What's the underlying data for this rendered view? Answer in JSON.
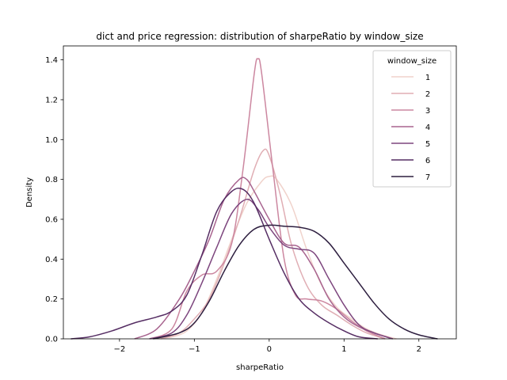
{
  "chart_data": {
    "type": "line",
    "title": "dict and price regression: distribution of sharpeRatio by window_size",
    "xlabel": "sharpeRatio",
    "ylabel": "Density",
    "xlim": [
      -2.75,
      2.5
    ],
    "ylim": [
      0,
      1.47
    ],
    "xticks": [
      -2,
      -1,
      0,
      1,
      2
    ],
    "yticks": [
      0.0,
      0.2,
      0.4,
      0.6,
      0.8,
      1.0,
      1.2,
      1.4
    ],
    "xtick_labels": [
      "−2",
      "−1",
      "0",
      "1",
      "2"
    ],
    "ytick_labels": [
      "0.0",
      "0.2",
      "0.4",
      "0.6",
      "0.8",
      "1.0",
      "1.2",
      "1.4"
    ],
    "grid": false,
    "legend": {
      "title": "window_size",
      "placement": "top-right"
    },
    "series": [
      {
        "name": "1",
        "color": "#f0d2cb",
        "x": [
          -1.55,
          -1.3,
          -1.1,
          -0.9,
          -0.7,
          -0.5,
          -0.3,
          -0.1,
          0.0,
          0.1,
          0.3,
          0.5,
          0.7,
          0.9,
          1.1,
          1.3,
          1.5,
          1.7
        ],
        "y": [
          0.0,
          0.01,
          0.04,
          0.13,
          0.3,
          0.5,
          0.68,
          0.79,
          0.815,
          0.8,
          0.67,
          0.45,
          0.27,
          0.16,
          0.1,
          0.05,
          0.02,
          0.0
        ]
      },
      {
        "name": "2",
        "color": "#e0aeb4",
        "x": [
          -1.45,
          -1.2,
          -1.0,
          -0.8,
          -0.6,
          -0.4,
          -0.2,
          -0.08,
          0.0,
          0.15,
          0.3,
          0.5,
          0.7,
          0.9,
          1.1,
          1.3,
          1.55
        ],
        "y": [
          0.0,
          0.03,
          0.1,
          0.2,
          0.38,
          0.6,
          0.85,
          0.945,
          0.92,
          0.72,
          0.47,
          0.27,
          0.17,
          0.12,
          0.07,
          0.03,
          0.0
        ]
      },
      {
        "name": "3",
        "color": "#cc87a0",
        "x": [
          -1.6,
          -1.3,
          -1.1,
          -0.9,
          -0.7,
          -0.5,
          -0.35,
          -0.2,
          -0.15,
          -0.1,
          0.05,
          0.2,
          0.35,
          0.5,
          0.7,
          0.9,
          1.1,
          1.3,
          1.55
        ],
        "y": [
          0.0,
          0.05,
          0.24,
          0.32,
          0.34,
          0.48,
          0.85,
          1.33,
          1.405,
          1.33,
          0.85,
          0.4,
          0.22,
          0.2,
          0.19,
          0.15,
          0.09,
          0.04,
          0.0
        ]
      },
      {
        "name": "4",
        "color": "#a8648f",
        "x": [
          -1.8,
          -1.5,
          -1.2,
          -1.0,
          -0.8,
          -0.6,
          -0.4,
          -0.3,
          -0.2,
          0.0,
          0.2,
          0.4,
          0.6,
          0.8,
          1.0,
          1.2,
          1.4,
          1.65
        ],
        "y": [
          0.0,
          0.05,
          0.2,
          0.34,
          0.5,
          0.7,
          0.8,
          0.8,
          0.74,
          0.6,
          0.48,
          0.46,
          0.35,
          0.2,
          0.11,
          0.06,
          0.03,
          0.0
        ]
      },
      {
        "name": "5",
        "color": "#7d467e",
        "x": [
          -1.6,
          -1.3,
          -1.1,
          -0.9,
          -0.7,
          -0.5,
          -0.3,
          -0.15,
          0.0,
          0.2,
          0.4,
          0.6,
          0.8,
          1.0,
          1.2,
          1.4,
          1.65
        ],
        "y": [
          0.0,
          0.03,
          0.12,
          0.28,
          0.46,
          0.63,
          0.7,
          0.65,
          0.56,
          0.47,
          0.45,
          0.43,
          0.3,
          0.17,
          0.07,
          0.03,
          0.0
        ]
      },
      {
        "name": "6",
        "color": "#552d63",
        "x": [
          -2.65,
          -2.4,
          -2.1,
          -1.8,
          -1.5,
          -1.3,
          -1.1,
          -0.9,
          -0.7,
          -0.5,
          -0.35,
          -0.2,
          0.0,
          0.2,
          0.4,
          0.6,
          0.8,
          1.0,
          1.2,
          1.45
        ],
        "y": [
          0.0,
          0.01,
          0.04,
          0.08,
          0.11,
          0.14,
          0.22,
          0.42,
          0.64,
          0.74,
          0.75,
          0.68,
          0.5,
          0.33,
          0.2,
          0.13,
          0.08,
          0.04,
          0.01,
          0.0
        ]
      },
      {
        "name": "7",
        "color": "#2d1e3f",
        "x": [
          -1.55,
          -1.2,
          -1.0,
          -0.8,
          -0.6,
          -0.4,
          -0.2,
          0.0,
          0.2,
          0.4,
          0.6,
          0.8,
          1.0,
          1.2,
          1.4,
          1.6,
          1.8,
          2.0,
          2.25
        ],
        "y": [
          0.0,
          0.03,
          0.08,
          0.19,
          0.34,
          0.47,
          0.55,
          0.57,
          0.565,
          0.56,
          0.54,
          0.48,
          0.38,
          0.28,
          0.18,
          0.1,
          0.05,
          0.02,
          0.0
        ]
      }
    ]
  }
}
